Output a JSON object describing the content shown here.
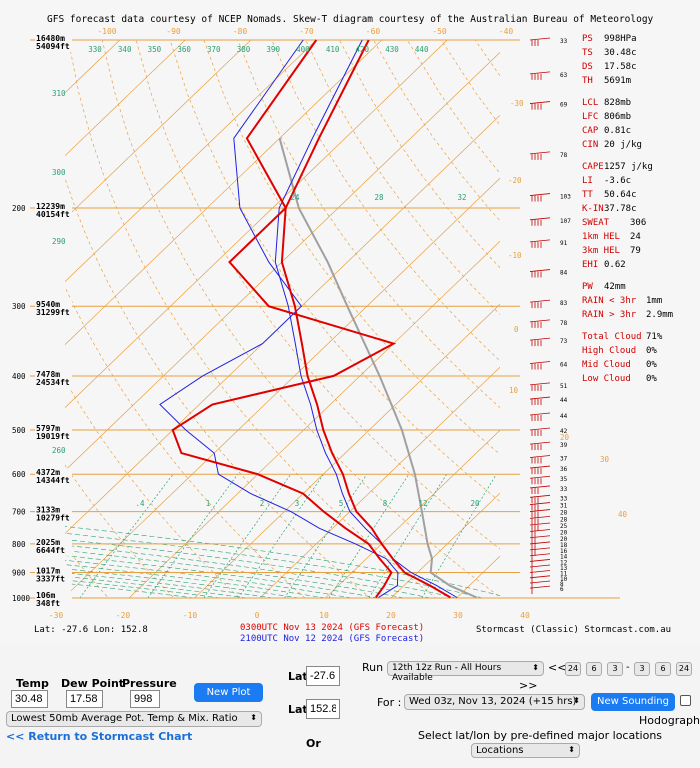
{
  "chart_data": {
    "type": "skew-t",
    "title": "GFS forecast data courtesy of NCEP Nomads.  Skew-T diagram courtesy of the Australian Bureau of Meteorology",
    "pressure_levels_mb": [
      1000,
      900,
      800,
      700,
      600,
      500,
      400,
      300,
      200
    ],
    "temperature_ticks_top": [
      -100,
      -90,
      -80,
      -70,
      -60,
      -50,
      -40
    ],
    "temperature_ticks_bottom": [
      -30,
      -20,
      -10,
      0,
      10,
      20,
      30,
      40
    ],
    "theta_labels": [
      "330",
      "340",
      "350",
      "360",
      "370",
      "380",
      "390",
      "400",
      "410",
      "420",
      "430",
      "440"
    ],
    "theta_left_labels": [
      "310",
      "300",
      "290",
      "280",
      "270",
      "260",
      "250"
    ],
    "mixing_ratio_labels": [
      ".4",
      "1",
      "2",
      "3",
      "5",
      "8",
      "12",
      "20"
    ],
    "isotherm_left_labels": [
      "24",
      "28",
      "32"
    ],
    "isotherm_right_labels": [
      "-30",
      "-20",
      "-10",
      "0",
      "10",
      "20",
      "30",
      "40"
    ],
    "height_labels": [
      {
        "m": "16480m",
        "ft": "54094ft"
      },
      {
        "m": "12239m",
        "ft": "40154ft"
      },
      {
        "m": "9540m",
        "ft": "31299ft"
      },
      {
        "m": "7478m",
        "ft": "24534ft"
      },
      {
        "m": "5797m",
        "ft": "19019ft"
      },
      {
        "m": "4372m",
        "ft": "14344ft"
      },
      {
        "m": "3133m",
        "ft": "10279ft"
      },
      {
        "m": "2025m",
        "ft": "6644ft"
      },
      {
        "m": "1017m",
        "ft": "3337ft"
      },
      {
        "m": "106m",
        "ft": "348ft"
      }
    ],
    "series": [
      {
        "name": "0300UTC Nov 13 2024 (GFS Forecast)",
        "color": "#e00000",
        "temperature": [
          [
            998,
            29
          ],
          [
            950,
            24
          ],
          [
            900,
            18
          ],
          [
            850,
            14
          ],
          [
            800,
            10
          ],
          [
            750,
            6
          ],
          [
            700,
            1
          ],
          [
            650,
            -3
          ],
          [
            600,
            -7
          ],
          [
            550,
            -12
          ],
          [
            500,
            -17
          ],
          [
            450,
            -22
          ],
          [
            400,
            -28
          ],
          [
            350,
            -34
          ],
          [
            300,
            -41
          ],
          [
            250,
            -50
          ],
          [
            200,
            -58
          ],
          [
            150,
            -64
          ],
          [
            100,
            -72
          ]
        ],
        "dewpoint": [
          [
            998,
            17.6
          ],
          [
            950,
            17
          ],
          [
            900,
            16
          ],
          [
            850,
            12
          ],
          [
            800,
            8
          ],
          [
            750,
            2
          ],
          [
            700,
            -4
          ],
          [
            650,
            -10
          ],
          [
            600,
            -20
          ],
          [
            550,
            -35
          ],
          [
            500,
            -40
          ],
          [
            450,
            -38
          ],
          [
            400,
            -24
          ],
          [
            350,
            -20
          ],
          [
            300,
            -45
          ],
          [
            250,
            -58
          ],
          [
            200,
            -58
          ],
          [
            150,
            -75
          ],
          [
            100,
            -80
          ]
        ]
      },
      {
        "name": "2100UTC Nov 12 2024 (GFS Forecast)",
        "color": "#2020e0",
        "temperature": [
          [
            998,
            30
          ],
          [
            950,
            25
          ],
          [
            900,
            19
          ],
          [
            850,
            14
          ],
          [
            800,
            10
          ],
          [
            750,
            5
          ],
          [
            700,
            0
          ],
          [
            650,
            -4
          ],
          [
            600,
            -8
          ],
          [
            550,
            -13
          ],
          [
            500,
            -18
          ],
          [
            450,
            -23
          ],
          [
            400,
            -29
          ],
          [
            350,
            -35
          ],
          [
            300,
            -42
          ],
          [
            250,
            -51
          ],
          [
            200,
            -59
          ],
          [
            150,
            -65
          ],
          [
            100,
            -73
          ]
        ],
        "dewpoint": [
          [
            998,
            18
          ],
          [
            950,
            19
          ],
          [
            900,
            17
          ],
          [
            850,
            13
          ],
          [
            800,
            6
          ],
          [
            750,
            -2
          ],
          [
            700,
            -9
          ],
          [
            650,
            -18
          ],
          [
            600,
            -26
          ],
          [
            550,
            -30
          ],
          [
            500,
            -38
          ],
          [
            450,
            -46
          ],
          [
            400,
            -44
          ],
          [
            350,
            -40
          ],
          [
            300,
            -40
          ],
          [
            250,
            -52
          ],
          [
            200,
            -65
          ],
          [
            150,
            -77
          ],
          [
            100,
            -82
          ]
        ]
      }
    ],
    "parcel": {
      "name": "parcel",
      "color": "#a0a0a0",
      "path": [
        [
          998,
          33
        ],
        [
          950,
          27
        ],
        [
          900,
          22
        ],
        [
          850,
          20
        ],
        [
          800,
          17
        ],
        [
          700,
          11
        ],
        [
          600,
          4
        ],
        [
          500,
          -5
        ],
        [
          400,
          -17
        ],
        [
          300,
          -33
        ],
        [
          250,
          -43
        ],
        [
          200,
          -56
        ],
        [
          150,
          -70
        ]
      ]
    },
    "wind_barbs": [
      {
        "p": 960,
        "spd": 6
      },
      {
        "p": 940,
        "spd": 8
      },
      {
        "p": 920,
        "spd": 10
      },
      {
        "p": 900,
        "spd": 11
      },
      {
        "p": 880,
        "spd": 13
      },
      {
        "p": 860,
        "spd": 12
      },
      {
        "p": 840,
        "spd": 14
      },
      {
        "p": 820,
        "spd": 16
      },
      {
        "p": 800,
        "spd": 18
      },
      {
        "p": 780,
        "spd": 20
      },
      {
        "p": 760,
        "spd": 20
      },
      {
        "p": 740,
        "spd": 25
      },
      {
        "p": 720,
        "spd": 28
      },
      {
        "p": 700,
        "spd": 28
      },
      {
        "p": 680,
        "spd": 31
      },
      {
        "p": 660,
        "spd": 33
      },
      {
        "p": 635,
        "spd": 33
      },
      {
        "p": 610,
        "spd": 35
      },
      {
        "p": 585,
        "spd": 36
      },
      {
        "p": 560,
        "spd": 37
      },
      {
        "p": 530,
        "spd": 39
      },
      {
        "p": 500,
        "spd": 42
      },
      {
        "p": 470,
        "spd": 44
      },
      {
        "p": 440,
        "spd": 44
      },
      {
        "p": 415,
        "spd": 51
      },
      {
        "p": 380,
        "spd": 64
      },
      {
        "p": 345,
        "spd": 73
      },
      {
        "p": 320,
        "spd": 78
      },
      {
        "p": 295,
        "spd": 83
      },
      {
        "p": 260,
        "spd": 84
      },
      {
        "p": 230,
        "spd": 91
      },
      {
        "p": 210,
        "spd": 107
      },
      {
        "p": 190,
        "spd": 103
      },
      {
        "p": 160,
        "spd": 78
      },
      {
        "p": 130,
        "spd": 69
      },
      {
        "p": 115,
        "spd": 63
      },
      {
        "p": 100,
        "spd": 33
      }
    ],
    "indices": [
      {
        "k": "PS",
        "v": "998HPa"
      },
      {
        "k": "TS",
        "v": "30.48c"
      },
      {
        "k": "DS",
        "v": "17.58c"
      },
      {
        "k": "TH",
        "v": "5691m"
      },
      {
        "k": "",
        "v": ""
      },
      {
        "k": "LCL",
        "v": "828mb"
      },
      {
        "k": "LFC",
        "v": "806mb"
      },
      {
        "k": "CAP",
        "v": "0.81c"
      },
      {
        "k": "CIN",
        "v": "20 j/kg"
      },
      {
        "k": "",
        "v": ""
      },
      {
        "k": "CAPE",
        "v": "1257 j/kg"
      },
      {
        "k": "LI",
        "v": "-3.6c"
      },
      {
        "k": "TT",
        "v": "50.64c"
      },
      {
        "k": "K-IN",
        "v": "37.78c"
      },
      {
        "k": "SWEAT",
        "v": "306"
      },
      {
        "k": "1km HEL",
        "v": "24"
      },
      {
        "k": "3km HEL",
        "v": "79"
      },
      {
        "k": "EHI",
        "v": "0.62"
      },
      {
        "k": "",
        "v": ""
      },
      {
        "k": "PW",
        "v": "42mm"
      },
      {
        "k": "RAIN < 3hr",
        "v": "1mm"
      },
      {
        "k": "RAIN > 3hr",
        "v": "2.9mm"
      },
      {
        "k": "",
        "v": ""
      },
      {
        "k": "Total Cloud",
        "v": "71%"
      },
      {
        "k": "High Cloud",
        "v": "0%"
      },
      {
        "k": "Mid Cloud",
        "v": "0%"
      },
      {
        "k": "Low Cloud",
        "v": "0%"
      }
    ],
    "lat_lon": "Lat: -27.6  Lon: 152.8",
    "credit": "Stormcast (Classic) Stormcast.com.au"
  },
  "controls": {
    "temp_label": "Temp",
    "temp_value": "30.48",
    "dew_label": "Dew Point",
    "dew_value": "17.58",
    "pressure_label": "Pressure",
    "pressure_value": "998",
    "new_plot": "New Plot",
    "lowest_select": "Lowest 50mb Average Pot. Temp & Mix. Ratio",
    "return_link": "<< Return to Stormcast Chart",
    "lat_label": "Lat",
    "lat_value": "-27.6",
    "lon_label": "Lat",
    "lon_value": "152.8",
    "or_label": "Or",
    "run_label": "Run",
    "run_select": "12th 12z Run - All Hours Available",
    "prev_symbol": "<<",
    "next_symbol": ">>",
    "step_buttons_left": [
      "24",
      "6",
      "3"
    ],
    "step_separator": "-",
    "step_buttons_right": [
      "3",
      "6",
      "24"
    ],
    "for_label": "For :",
    "for_select": "Wed 03z, Nov 13, 2024 (+15 hrs)",
    "new_sounding": "New Sounding",
    "hodograph_label": "Hodograph",
    "predef_label": "Select lat/lon by pre-defined major locations",
    "locations_select": "Locations"
  },
  "colors": {
    "temp_red": "#e00000",
    "dew_blue": "#2020e0",
    "grid_orange": "#e8a040",
    "mix_green": "#2aa070",
    "parcel_gray": "#a0a0a0",
    "button_blue": "#1a7bf2"
  }
}
